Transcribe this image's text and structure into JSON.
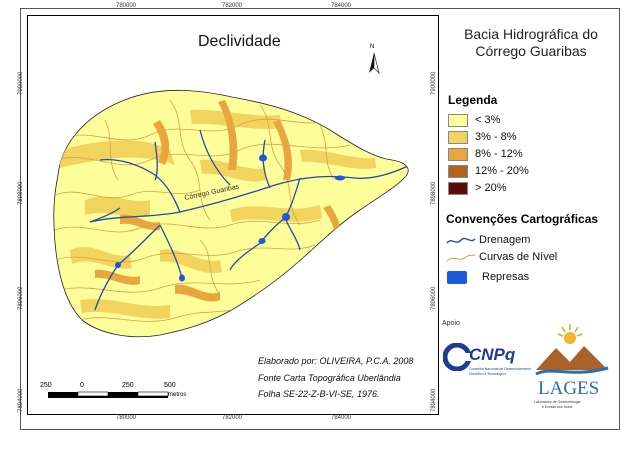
{
  "map": {
    "title": "Declividade",
    "river_label": "Córrego Guaribas",
    "north_letter": "N",
    "ticks_top": [
      "780000",
      "782000",
      "784000"
    ],
    "ticks_bottom": [
      "780000",
      "782000",
      "784000"
    ],
    "ticks_left": [
      "7900000",
      "7898000",
      "7896000",
      "7894000"
    ],
    "ticks_right": [
      "7900000",
      "7898000",
      "7896000",
      "7894000"
    ],
    "credits": [
      "Elaborado por: OLIVEIRA, P.C.A. 2008",
      "Fonte Carta Topográfica Uberlândia",
      "Folha SE-22-Z-B-VI-SE, 1976."
    ],
    "scale": {
      "labels": [
        "250",
        "0",
        "250",
        "500"
      ],
      "unit": "metros"
    }
  },
  "sidebar": {
    "title_line1": "Bacia Hidrográfica do",
    "title_line2": "Córrego Guaribas",
    "legend_heading": "Legenda",
    "legend": [
      {
        "label": "< 3%",
        "color": "#fdfd9a"
      },
      {
        "label": "3% - 8%",
        "color": "#f2d35e"
      },
      {
        "label": "8% - 12%",
        "color": "#e9a63f"
      },
      {
        "label": "12% - 20%",
        "color": "#b4621b"
      },
      {
        "label": "> 20%",
        "color": "#5a0a0a"
      }
    ],
    "conventions_heading": "Convenções Cartográficas",
    "conventions": [
      {
        "label": "Drenagem",
        "color": "#1f4fa8"
      },
      {
        "label": "Curvas de Nível",
        "color": "#d6a24a"
      },
      {
        "label": "Represas",
        "color": "#1a5ad8"
      }
    ],
    "apoio": "Apoio",
    "cnpq_name": "CNPq",
    "cnpq_sub": [
      "Conselho Nacional de Desenvolvimento",
      "Científico e Tecnológico"
    ],
    "lages_name": "LAGES",
    "lages_sub": [
      "Laboratório de Geomorfologia",
      "e Erosão dos Solos"
    ]
  }
}
